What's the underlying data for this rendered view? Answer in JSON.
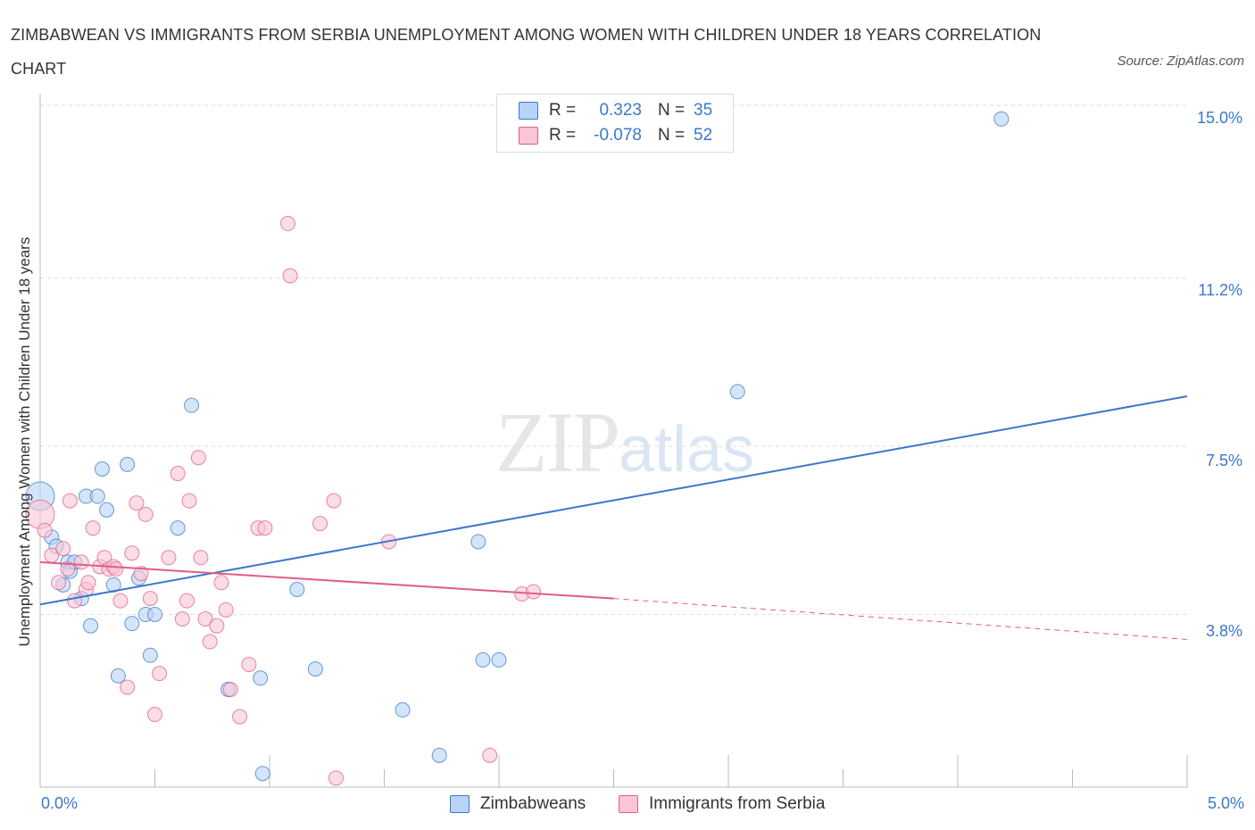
{
  "title": "ZIMBABWEAN VS IMMIGRANTS FROM SERBIA UNEMPLOYMENT AMONG WOMEN WITH CHILDREN UNDER 18 YEARS CORRELATION CHART",
  "source": "Source: ZipAtlas.com",
  "watermark": {
    "zip": "ZIP",
    "atlas": "atlas"
  },
  "colors": {
    "blue": "#3a78c9",
    "blue_fill": "#b8d3f5",
    "pink": "#e05c8a",
    "pink_fill": "#f8c6d6",
    "grid": "#dddddd"
  },
  "legend": {
    "rows": [
      {
        "r_label": "R =",
        "r_value": "0.323",
        "n_label": "N =",
        "n_value": "35"
      },
      {
        "r_label": "R =",
        "r_value": "-0.078",
        "n_label": "N =",
        "n_value": "52"
      }
    ]
  },
  "bottom_legend": [
    "Zimbabweans",
    "Immigrants from Serbia"
  ],
  "chart_data": {
    "type": "scatter",
    "title": "ZIMBABWEAN VS IMMIGRANTS FROM SERBIA UNEMPLOYMENT AMONG WOMEN WITH CHILDREN UNDER 18 YEARS CORRELATION CHART",
    "xlabel": "",
    "ylabel": "Unemployment Among Women with Children Under 18 years",
    "xlim": [
      0,
      5
    ],
    "ylim": [
      0,
      15
    ],
    "x_tick_labels": [
      "0.0%",
      "5.0%"
    ],
    "y_ticks": [
      3.8,
      7.5,
      11.2,
      15.0
    ],
    "y_tick_labels": [
      "3.8%",
      "7.5%",
      "11.2%",
      "15.0%"
    ],
    "grid": true,
    "series": [
      {
        "name": "Zimbabweans",
        "points": [
          [
            0.0,
            6.4
          ],
          [
            0.05,
            5.5
          ],
          [
            0.07,
            5.3
          ],
          [
            0.1,
            4.45
          ],
          [
            0.12,
            4.95
          ],
          [
            0.13,
            4.75
          ],
          [
            0.15,
            4.95
          ],
          [
            0.18,
            4.15
          ],
          [
            0.2,
            6.4
          ],
          [
            0.22,
            3.55
          ],
          [
            0.25,
            6.4
          ],
          [
            0.27,
            7.0
          ],
          [
            0.29,
            6.1
          ],
          [
            0.32,
            4.45
          ],
          [
            0.34,
            2.45
          ],
          [
            0.38,
            7.1
          ],
          [
            0.4,
            3.6
          ],
          [
            0.43,
            4.6
          ],
          [
            0.46,
            3.8
          ],
          [
            0.48,
            2.9
          ],
          [
            0.5,
            3.8
          ],
          [
            0.6,
            5.7
          ],
          [
            0.66,
            8.4
          ],
          [
            0.82,
            2.15
          ],
          [
            0.96,
            2.4
          ],
          [
            0.97,
            0.3
          ],
          [
            1.12,
            4.35
          ],
          [
            1.2,
            2.6
          ],
          [
            1.58,
            1.7
          ],
          [
            1.74,
            0.7
          ],
          [
            1.91,
            5.4
          ],
          [
            1.93,
            2.8
          ],
          [
            2.0,
            2.8
          ],
          [
            3.04,
            8.7
          ],
          [
            4.19,
            14.7
          ]
        ],
        "trend": {
          "x": [
            0.0,
            5.0
          ],
          "y": [
            4.02,
            8.6
          ]
        }
      },
      {
        "name": "Immigrants from Serbia",
        "points": [
          [
            0.0,
            6.0
          ],
          [
            0.02,
            5.65
          ],
          [
            0.05,
            5.1
          ],
          [
            0.08,
            4.5
          ],
          [
            0.1,
            5.25
          ],
          [
            0.12,
            4.8
          ],
          [
            0.13,
            6.3
          ],
          [
            0.15,
            4.1
          ],
          [
            0.18,
            4.95
          ],
          [
            0.2,
            4.35
          ],
          [
            0.21,
            4.5
          ],
          [
            0.23,
            5.7
          ],
          [
            0.26,
            4.85
          ],
          [
            0.28,
            5.05
          ],
          [
            0.3,
            4.8
          ],
          [
            0.32,
            4.85
          ],
          [
            0.33,
            4.8
          ],
          [
            0.35,
            4.1
          ],
          [
            0.38,
            2.2
          ],
          [
            0.4,
            5.15
          ],
          [
            0.42,
            6.25
          ],
          [
            0.44,
            4.7
          ],
          [
            0.46,
            6.0
          ],
          [
            0.48,
            4.15
          ],
          [
            0.5,
            1.6
          ],
          [
            0.52,
            2.5
          ],
          [
            0.56,
            5.05
          ],
          [
            0.6,
            6.9
          ],
          [
            0.62,
            3.7
          ],
          [
            0.64,
            4.1
          ],
          [
            0.65,
            6.3
          ],
          [
            0.69,
            7.25
          ],
          [
            0.7,
            5.05
          ],
          [
            0.72,
            3.7
          ],
          [
            0.74,
            3.2
          ],
          [
            0.77,
            3.55
          ],
          [
            0.79,
            4.5
          ],
          [
            0.81,
            3.9
          ],
          [
            0.83,
            2.15
          ],
          [
            0.87,
            1.55
          ],
          [
            0.91,
            2.7
          ],
          [
            0.95,
            5.7
          ],
          [
            0.98,
            5.7
          ],
          [
            1.08,
            12.4
          ],
          [
            1.09,
            11.25
          ],
          [
            1.22,
            5.8
          ],
          [
            1.28,
            6.3
          ],
          [
            1.29,
            0.2
          ],
          [
            1.52,
            5.4
          ],
          [
            1.96,
            0.7
          ],
          [
            2.1,
            4.25
          ],
          [
            2.15,
            4.3
          ]
        ],
        "trend": {
          "x": [
            0.0,
            2.5
          ],
          "y": [
            4.95,
            4.15
          ]
        },
        "trend_dashed": {
          "x": [
            2.5,
            5.0
          ],
          "y": [
            4.15,
            3.25
          ]
        }
      }
    ]
  }
}
